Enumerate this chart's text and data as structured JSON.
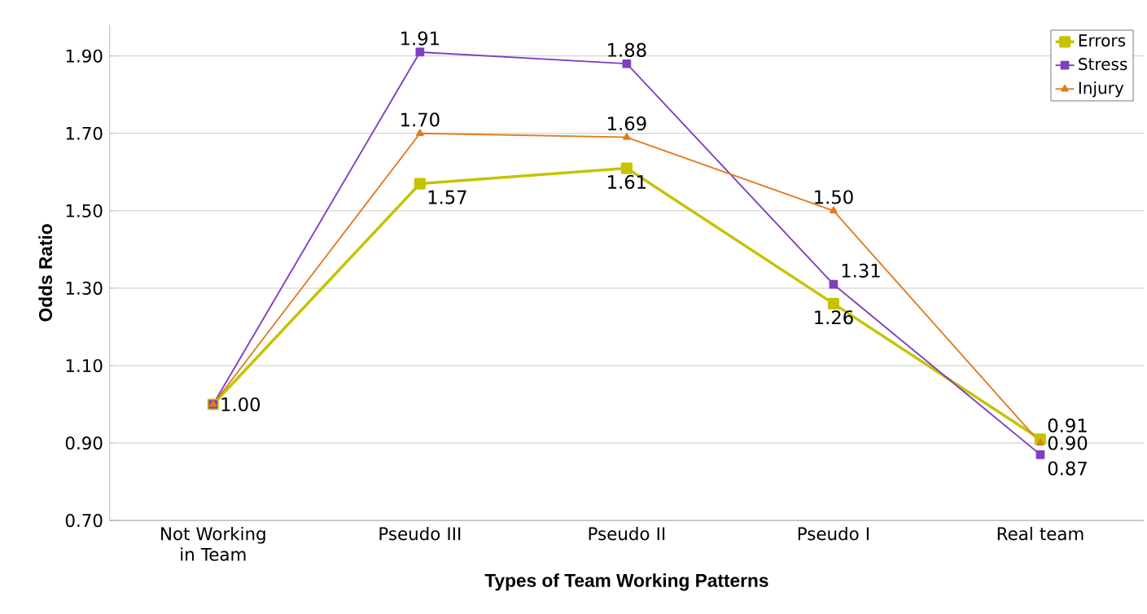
{
  "chart_data": {
    "type": "line",
    "xlabel": "Types of Team Working Patterns",
    "ylabel": "Odds Ratio",
    "categories": [
      "Not Working in Team",
      "Pseudo III",
      "Pseudo II",
      "Pseudo I",
      "Real team"
    ],
    "series": [
      {
        "name": "Errors",
        "color": "#c4c400",
        "marker": "square",
        "values": [
          1.0,
          1.57,
          1.61,
          1.26,
          0.91
        ],
        "value_labels": [
          "1.00",
          "1.57",
          "1.61",
          "1.26",
          "0.91"
        ]
      },
      {
        "name": "Stress",
        "color": "#7f3fbf",
        "marker": "square",
        "values": [
          1.0,
          1.91,
          1.88,
          1.31,
          0.87
        ],
        "value_labels": [
          null,
          "1.91",
          "1.88",
          "1.31",
          "0.87"
        ]
      },
      {
        "name": "Injury",
        "color": "#e07b20",
        "marker": "triangle",
        "values": [
          1.0,
          1.7,
          1.69,
          1.5,
          0.9
        ],
        "value_labels": [
          null,
          "1.70",
          "1.69",
          "1.50",
          "0.90"
        ]
      }
    ],
    "ylim": [
      0.7,
      1.98
    ],
    "yticks": [
      {
        "value": 0.7,
        "label": "0.70"
      },
      {
        "value": 0.9,
        "label": "0.90"
      },
      {
        "value": 1.1,
        "label": "1.10"
      },
      {
        "value": 1.3,
        "label": "1.30"
      },
      {
        "value": 1.5,
        "label": "1.50"
      },
      {
        "value": 1.7,
        "label": "1.70"
      },
      {
        "value": 1.9,
        "label": "1.90"
      }
    ],
    "grid": "y",
    "legend": "top right",
    "line_style": "solid"
  }
}
